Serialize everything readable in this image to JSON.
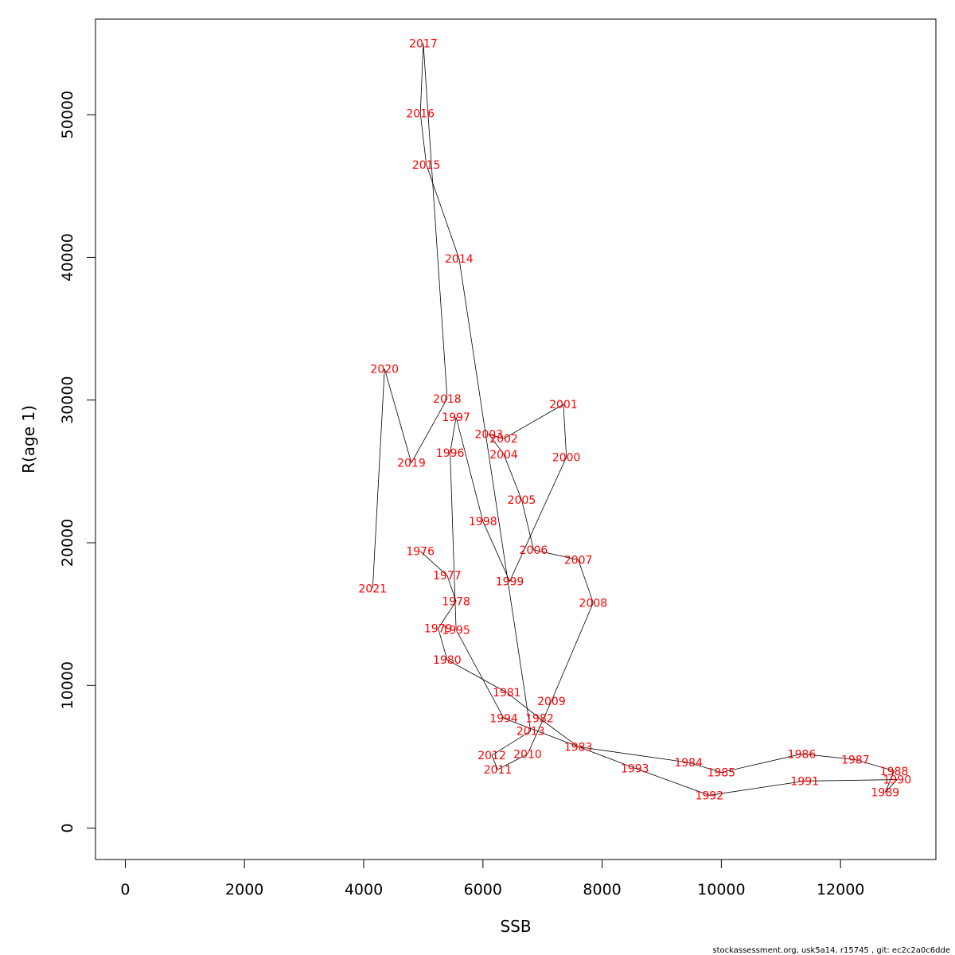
{
  "footer": "stockassessment.org, usk5a14, r15745 , git: ec2c2a0c6dde",
  "chart_data": {
    "type": "line",
    "title": "",
    "xlabel": "SSB",
    "ylabel": "R(age 1)",
    "xlim": [
      -500,
      13600
    ],
    "ylim": [
      -2200,
      56700
    ],
    "xticks": [
      0,
      2000,
      4000,
      6000,
      8000,
      10000,
      12000
    ],
    "yticks": [
      0,
      10000,
      20000,
      30000,
      40000,
      50000
    ],
    "line_color": "#000000",
    "label_color": "#ff0000",
    "points": [
      {
        "year": "1976",
        "x": 4950,
        "y": 19400
      },
      {
        "year": "1977",
        "x": 5400,
        "y": 17700
      },
      {
        "year": "1978",
        "x": 5550,
        "y": 15900
      },
      {
        "year": "1979",
        "x": 5250,
        "y": 14000
      },
      {
        "year": "1980",
        "x": 5400,
        "y": 11800
      },
      {
        "year": "1981",
        "x": 6400,
        "y": 9500
      },
      {
        "year": "1982",
        "x": 6950,
        "y": 7700
      },
      {
        "year": "1983",
        "x": 7600,
        "y": 5700
      },
      {
        "year": "1984",
        "x": 9450,
        "y": 4600
      },
      {
        "year": "1985",
        "x": 10000,
        "y": 3900
      },
      {
        "year": "1986",
        "x": 11350,
        "y": 5200
      },
      {
        "year": "1987",
        "x": 12250,
        "y": 4800
      },
      {
        "year": "1988",
        "x": 12900,
        "y": 4000
      },
      {
        "year": "1989",
        "x": 12750,
        "y": 2500
      },
      {
        "year": "1990",
        "x": 12950,
        "y": 3400
      },
      {
        "year": "1991",
        "x": 11400,
        "y": 3300
      },
      {
        "year": "1992",
        "x": 9800,
        "y": 2300
      },
      {
        "year": "1993",
        "x": 8550,
        "y": 4200
      },
      {
        "year": "1994",
        "x": 6350,
        "y": 7700
      },
      {
        "year": "1995",
        "x": 5550,
        "y": 13900
      },
      {
        "year": "1996",
        "x": 5450,
        "y": 26300
      },
      {
        "year": "1997",
        "x": 5550,
        "y": 28800
      },
      {
        "year": "1998",
        "x": 6000,
        "y": 21500
      },
      {
        "year": "1999",
        "x": 6450,
        "y": 17300
      },
      {
        "year": "2000",
        "x": 7400,
        "y": 26000
      },
      {
        "year": "2001",
        "x": 7350,
        "y": 29700
      },
      {
        "year": "2002",
        "x": 6350,
        "y": 27300
      },
      {
        "year": "2003",
        "x": 6100,
        "y": 27600
      },
      {
        "year": "2004",
        "x": 6350,
        "y": 26200
      },
      {
        "year": "2005",
        "x": 6650,
        "y": 23000
      },
      {
        "year": "2006",
        "x": 6850,
        "y": 19500
      },
      {
        "year": "2007",
        "x": 7600,
        "y": 18800
      },
      {
        "year": "2008",
        "x": 7850,
        "y": 15800
      },
      {
        "year": "2009",
        "x": 7150,
        "y": 8900
      },
      {
        "year": "2010",
        "x": 6750,
        "y": 5200
      },
      {
        "year": "2011",
        "x": 6250,
        "y": 4100
      },
      {
        "year": "2012",
        "x": 6150,
        "y": 5100
      },
      {
        "year": "2013",
        "x": 6800,
        "y": 6800
      },
      {
        "year": "2014",
        "x": 5600,
        "y": 39900
      },
      {
        "year": "2015",
        "x": 5050,
        "y": 46500
      },
      {
        "year": "2016",
        "x": 4950,
        "y": 50100
      },
      {
        "year": "2017",
        "x": 5000,
        "y": 55000
      },
      {
        "year": "2018",
        "x": 5400,
        "y": 30100
      },
      {
        "year": "2019",
        "x": 4800,
        "y": 25600
      },
      {
        "year": "2020",
        "x": 4350,
        "y": 32200
      },
      {
        "year": "2021",
        "x": 4150,
        "y": 16800
      }
    ]
  }
}
